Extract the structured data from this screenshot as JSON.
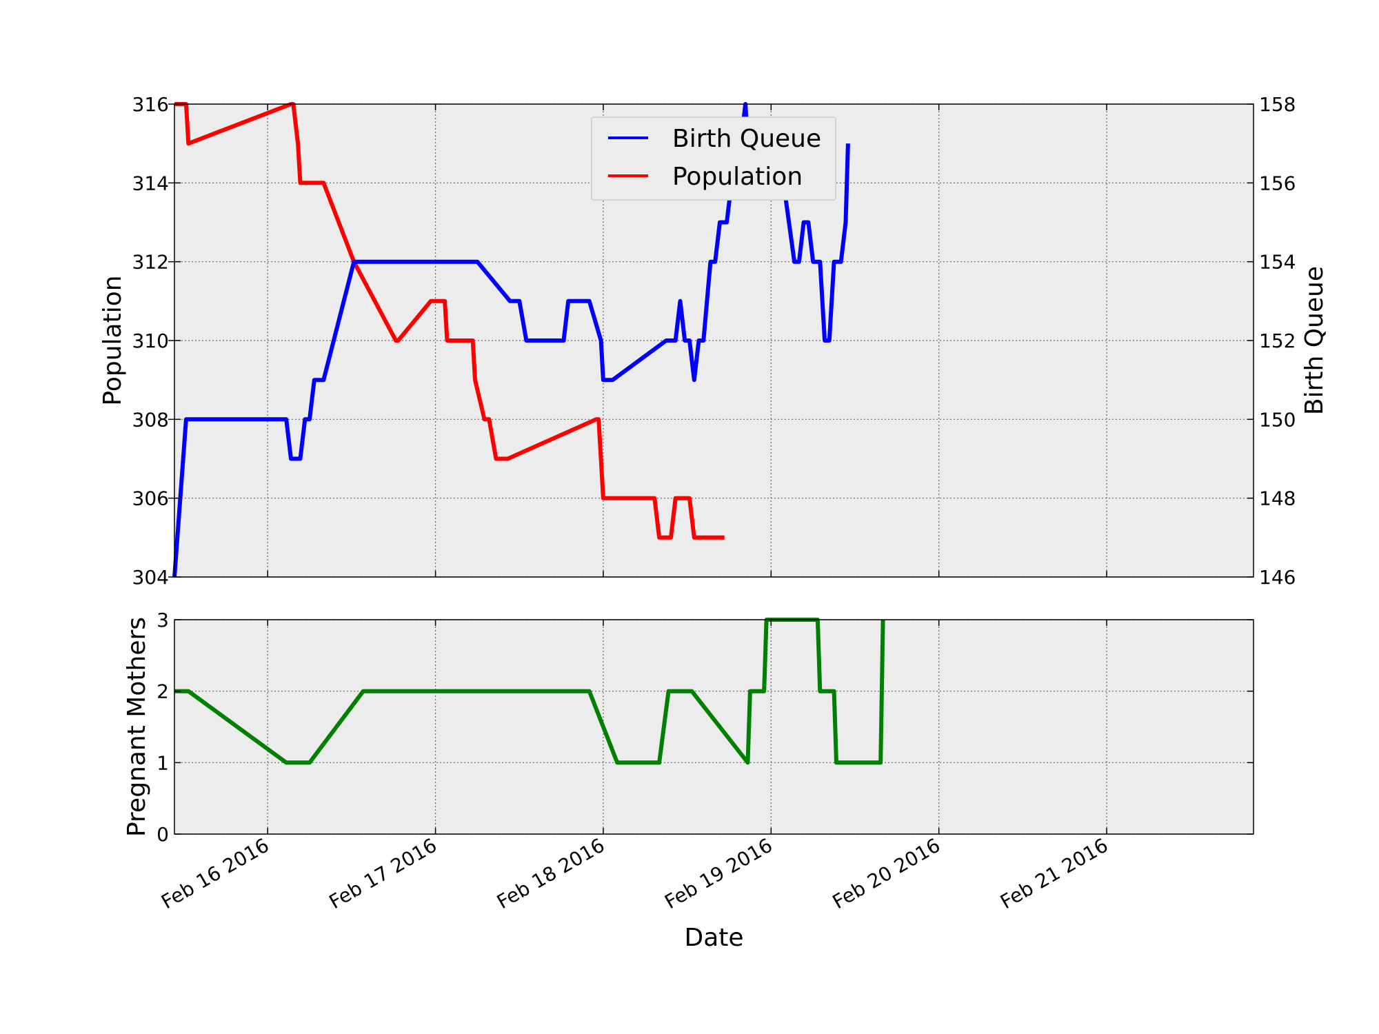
{
  "chart_data": [
    {
      "type": "line",
      "title": "",
      "xlabel": "",
      "ylabel": "Population",
      "ylabel_right": "Birth Queue",
      "xlim": [
        "2016-02-15 10:40",
        "2016-02-21 21:00"
      ],
      "ylim": [
        304,
        316
      ],
      "ylim_right": [
        146,
        158
      ],
      "yticks": [
        304,
        306,
        308,
        310,
        312,
        314,
        316
      ],
      "yticks_right": [
        146,
        148,
        150,
        152,
        154,
        156,
        158
      ],
      "grid": true,
      "background": "#ececec",
      "legend": "top-center",
      "legend_entries": [
        {
          "label": "Birth Queue",
          "color": "#0000ff"
        },
        {
          "label": "Population",
          "color": "#ff0000"
        }
      ],
      "series": [
        {
          "name": "Birth Queue",
          "axis": "right",
          "color": "#0000ff",
          "points": [
            [
              "2016-02-15 10:40",
              146
            ],
            [
              "2016-02-15 12:20",
              150
            ],
            [
              "2016-02-16 02:40",
              150
            ],
            [
              "2016-02-16 03:20",
              149
            ],
            [
              "2016-02-16 04:40",
              149
            ],
            [
              "2016-02-16 05:20",
              150
            ],
            [
              "2016-02-16 06:00",
              150
            ],
            [
              "2016-02-16 06:40",
              151
            ],
            [
              "2016-02-16 08:00",
              151
            ],
            [
              "2016-02-16 12:20",
              154
            ],
            [
              "2016-02-16 13:20",
              154
            ],
            [
              "2016-02-17 06:00",
              154
            ],
            [
              "2016-02-17 10:40",
              153
            ],
            [
              "2016-02-17 12:00",
              153
            ],
            [
              "2016-02-17 13:00",
              152
            ],
            [
              "2016-02-17 18:20",
              152
            ],
            [
              "2016-02-17 19:00",
              153
            ],
            [
              "2016-02-17 22:00",
              153
            ],
            [
              "2016-02-17 23:40",
              152
            ],
            [
              "2016-02-18 00:00",
              151
            ],
            [
              "2016-02-18 01:20",
              151
            ],
            [
              "2016-02-18 09:00",
              152
            ],
            [
              "2016-02-18 10:20",
              152
            ],
            [
              "2016-02-18 11:00",
              153
            ],
            [
              "2016-02-18 11:40",
              152
            ],
            [
              "2016-02-18 12:20",
              152
            ],
            [
              "2016-02-18 13:00",
              151
            ],
            [
              "2016-02-18 13:40",
              152
            ],
            [
              "2016-02-18 14:20",
              152
            ],
            [
              "2016-02-18 15:20",
              154
            ],
            [
              "2016-02-18 16:00",
              154
            ],
            [
              "2016-02-18 16:40",
              155
            ],
            [
              "2016-02-18 17:40",
              155
            ],
            [
              "2016-02-18 19:00",
              157
            ],
            [
              "2016-02-18 19:40",
              157
            ],
            [
              "2016-02-18 20:20",
              158
            ],
            [
              "2016-02-18 21:00",
              156
            ],
            [
              "2016-02-18 22:00",
              156
            ],
            [
              "2016-02-18 22:40",
              157
            ],
            [
              "2016-02-19 00:00",
              157
            ],
            [
              "2016-02-19 01:00",
              157
            ],
            [
              "2016-02-19 03:20",
              154
            ],
            [
              "2016-02-19 04:00",
              154
            ],
            [
              "2016-02-19 04:40",
              155
            ],
            [
              "2016-02-19 05:20",
              155
            ],
            [
              "2016-02-19 06:00",
              154
            ],
            [
              "2016-02-19 07:00",
              154
            ],
            [
              "2016-02-19 07:40",
              152
            ],
            [
              "2016-02-19 08:20",
              152
            ],
            [
              "2016-02-19 09:00",
              154
            ],
            [
              "2016-02-19 10:00",
              154
            ],
            [
              "2016-02-19 10:40",
              155
            ],
            [
              "2016-02-19 11:00",
              157
            ]
          ]
        },
        {
          "name": "Population",
          "axis": "left",
          "color": "#ff0000",
          "points": [
            [
              "2016-02-15 10:40",
              316
            ],
            [
              "2016-02-15 12:20",
              316
            ],
            [
              "2016-02-15 12:40",
              315
            ],
            [
              "2016-02-16 03:20",
              316
            ],
            [
              "2016-02-16 03:40",
              316
            ],
            [
              "2016-02-16 04:20",
              315
            ],
            [
              "2016-02-16 04:40",
              314
            ],
            [
              "2016-02-16 06:00",
              314
            ],
            [
              "2016-02-16 06:40",
              314
            ],
            [
              "2016-02-16 08:00",
              314
            ],
            [
              "2016-02-16 12:20",
              312
            ],
            [
              "2016-02-16 18:20",
              310
            ],
            [
              "2016-02-16 18:40",
              310
            ],
            [
              "2016-02-16 23:20",
              311
            ],
            [
              "2016-02-17 00:40",
              311
            ],
            [
              "2016-02-17 01:20",
              311
            ],
            [
              "2016-02-17 01:40",
              310
            ],
            [
              "2016-02-17 04:40",
              310
            ],
            [
              "2016-02-17 05:20",
              310
            ],
            [
              "2016-02-17 05:40",
              309
            ],
            [
              "2016-02-17 07:00",
              308
            ],
            [
              "2016-02-17 07:40",
              308
            ],
            [
              "2016-02-17 08:40",
              307
            ],
            [
              "2016-02-17 10:20",
              307
            ],
            [
              "2016-02-17 23:00",
              308
            ],
            [
              "2016-02-17 23:20",
              308
            ],
            [
              "2016-02-18 00:00",
              306
            ],
            [
              "2016-02-18 07:20",
              306
            ],
            [
              "2016-02-18 08:00",
              305
            ],
            [
              "2016-02-18 09:40",
              305
            ],
            [
              "2016-02-18 10:20",
              306
            ],
            [
              "2016-02-18 12:20",
              306
            ],
            [
              "2016-02-18 13:00",
              305
            ],
            [
              "2016-02-18 17:20",
              305
            ]
          ]
        }
      ]
    },
    {
      "type": "line",
      "title": "",
      "xlabel": "Date",
      "ylabel": "Pregnant Mothers",
      "xlim": [
        "2016-02-15 10:40",
        "2016-02-21 21:00"
      ],
      "ylim": [
        0,
        3
      ],
      "yticks": [
        0,
        1,
        2,
        3
      ],
      "x_tick_labels": [
        "Feb 16 2016",
        "Feb 17 2016",
        "Feb 18 2016",
        "Feb 19 2016",
        "Feb 20 2016",
        "Feb 21 2016"
      ],
      "grid": true,
      "background": "#ececec",
      "series": [
        {
          "color": "#008000",
          "points": [
            [
              "2016-02-15 10:40",
              2
            ],
            [
              "2016-02-15 12:40",
              2
            ],
            [
              "2016-02-16 02:40",
              1
            ],
            [
              "2016-02-16 06:00",
              1
            ],
            [
              "2016-02-16 13:40",
              2
            ],
            [
              "2016-02-17 22:00",
              2
            ],
            [
              "2016-02-18 02:00",
              1
            ],
            [
              "2016-02-18 08:00",
              1
            ],
            [
              "2016-02-18 09:20",
              2
            ],
            [
              "2016-02-18 12:40",
              2
            ],
            [
              "2016-02-18 20:40",
              1
            ],
            [
              "2016-02-18 21:00",
              2
            ],
            [
              "2016-02-18 23:00",
              2
            ],
            [
              "2016-02-18 23:20",
              3
            ],
            [
              "2016-02-19 06:40",
              3
            ],
            [
              "2016-02-19 07:00",
              2
            ],
            [
              "2016-02-19 09:00",
              2
            ],
            [
              "2016-02-19 09:20",
              1
            ],
            [
              "2016-02-19 15:40",
              1
            ],
            [
              "2016-02-19 16:00",
              3
            ]
          ]
        }
      ]
    }
  ]
}
